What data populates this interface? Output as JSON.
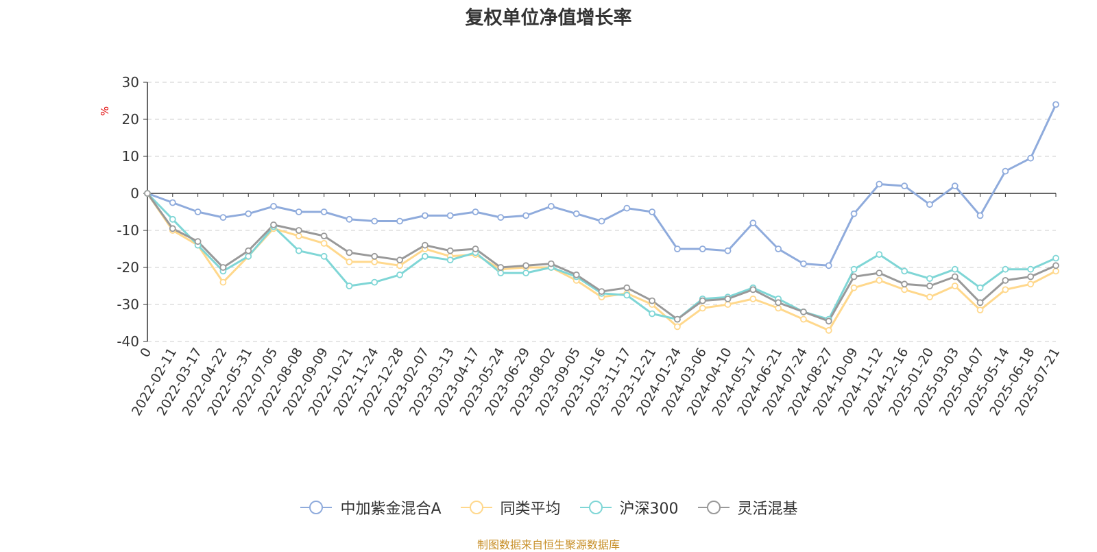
{
  "colors": {
    "fund": "#8fabdc",
    "peer_avg": "#ffd88c",
    "hs300": "#7fd6d6",
    "flex_mix": "#999999",
    "axis": "#333333",
    "grid": "#cccccc",
    "unit": "#e00000",
    "title": "#333333",
    "source": "#c8902a"
  },
  "chart_data": {
    "type": "line",
    "title": "复权单位净值增长率",
    "ylabel": "%",
    "xlabel": "",
    "ylim": [
      -40,
      30
    ],
    "yticks": [
      "30",
      "20",
      "10",
      "0",
      "-10",
      "-20",
      "-30",
      "-40"
    ],
    "grid": true,
    "legend_position": "bottom-center",
    "categories": [
      "0",
      "2022-02-11",
      "2022-03-17",
      "2022-04-22",
      "2022-05-31",
      "2022-07-05",
      "2022-08-08",
      "2022-09-09",
      "2022-10-21",
      "2022-11-24",
      "2022-12-28",
      "2023-02-07",
      "2023-03-13",
      "2023-04-17",
      "2023-05-24",
      "2023-06-29",
      "2023-08-02",
      "2023-09-05",
      "2023-10-16",
      "2023-11-17",
      "2023-12-21",
      "2024-01-24",
      "2024-03-06",
      "2024-04-10",
      "2024-05-17",
      "2024-06-21",
      "2024-07-24",
      "2024-08-27",
      "2024-10-09",
      "2024-11-12",
      "2024-12-16",
      "2025-01-20",
      "2025-03-03",
      "2025-04-07",
      "2025-05-14",
      "2025-06-18",
      "2025-07-21"
    ],
    "series": [
      {
        "name": "中加紫金混合A",
        "color_key": "fund",
        "values": [
          0,
          -2.5,
          -5,
          -6.5,
          -5.5,
          -3.5,
          -5,
          -5,
          -7,
          -7.5,
          -7.5,
          -6,
          -6,
          -5,
          -6.5,
          -6,
          -3.5,
          -5.5,
          -7.5,
          -4,
          -5,
          -15,
          -15,
          -15.5,
          -8,
          -15,
          -19,
          -19.5,
          -5.5,
          2.5,
          2,
          -3,
          2,
          -6,
          6,
          9.5,
          24
        ]
      },
      {
        "name": "同类平均",
        "color_key": "peer_avg",
        "values": [
          0,
          -10,
          -14,
          -24,
          -17,
          -9.5,
          -11.5,
          -13.5,
          -18.5,
          -18.5,
          -19.5,
          -15,
          -17,
          -16.5,
          -20.5,
          -20,
          -20,
          -23.5,
          -28,
          -27,
          -30,
          -36,
          -31,
          -30,
          -28.5,
          -31,
          -34,
          -37,
          -25.5,
          -23.5,
          -26,
          -28,
          -25,
          -31.5,
          -26,
          -24.5,
          -21
        ]
      },
      {
        "name": "沪深300",
        "color_key": "hs300",
        "values": [
          0,
          -7,
          -14,
          -21,
          -17,
          -9,
          -15.5,
          -17,
          -25,
          -24,
          -22,
          -17,
          -18,
          -16,
          -21.5,
          -21.5,
          -20,
          -22.5,
          -27,
          -27.5,
          -32.5,
          -34,
          -28.5,
          -28,
          -25.5,
          -28.5,
          -32,
          -34,
          -20.5,
          -16.5,
          -21,
          -23,
          -20.5,
          -25.5,
          -20.5,
          -20.5,
          -17.5
        ]
      },
      {
        "name": "灵活混基",
        "color_key": "flex_mix",
        "values": [
          0,
          -9.5,
          -13,
          -20,
          -15.5,
          -8.5,
          -10,
          -11.5,
          -16,
          -17,
          -18,
          -14,
          -15.5,
          -15,
          -20,
          -19.5,
          -19,
          -22,
          -26.5,
          -25.5,
          -29,
          -34,
          -29,
          -28.5,
          -26,
          -29.5,
          -32,
          -34.5,
          -22.5,
          -21.5,
          -24.5,
          -25,
          -22.5,
          -29.5,
          -23.5,
          -22.5,
          -19.5
        ]
      }
    ]
  },
  "source_note": "制图数据来自恒生聚源数据库"
}
